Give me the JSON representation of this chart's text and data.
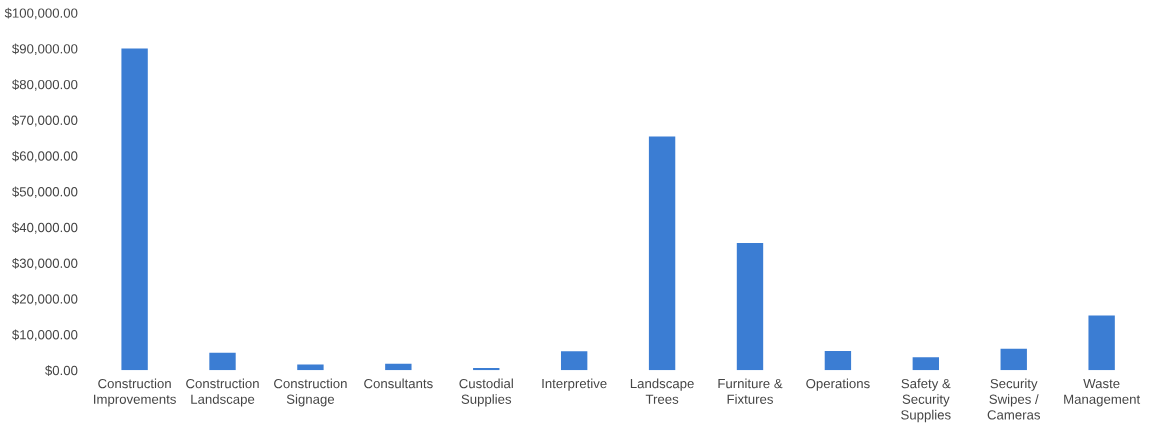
{
  "chart_data": {
    "type": "bar",
    "categories": [
      "Construction\nImprovements",
      "Construction\nLandscape",
      "Construction\nSignage",
      "Consultants",
      "Custodial\nSupplies",
      "Interpretive",
      "Landscape\nTrees",
      "Furniture &\nFixtures",
      "Operations",
      "Safety &\nSecurity\nSupplies",
      "Security\nSwipes /\nCameras",
      "Waste\nManagement"
    ],
    "values": [
      90000,
      4900,
      1600,
      1800,
      600,
      5300,
      65400,
      35600,
      5400,
      3600,
      6000,
      15300
    ],
    "color": "#3b7dd3",
    "ylim": [
      0,
      100000
    ],
    "yticks": [
      {
        "value": 0,
        "label": "$0.00"
      },
      {
        "value": 10000,
        "label": "$10,000.00"
      },
      {
        "value": 20000,
        "label": "$20,000.00"
      },
      {
        "value": 30000,
        "label": "$30,000.00"
      },
      {
        "value": 40000,
        "label": "$40,000.00"
      },
      {
        "value": 50000,
        "label": "$50,000.00"
      },
      {
        "value": 60000,
        "label": "$60,000.00"
      },
      {
        "value": 70000,
        "label": "$70,000.00"
      },
      {
        "value": 80000,
        "label": "$80,000.00"
      },
      {
        "value": 90000,
        "label": "$90,000.00"
      },
      {
        "value": 100000,
        "label": "$100,000.00"
      }
    ],
    "grid": false
  }
}
